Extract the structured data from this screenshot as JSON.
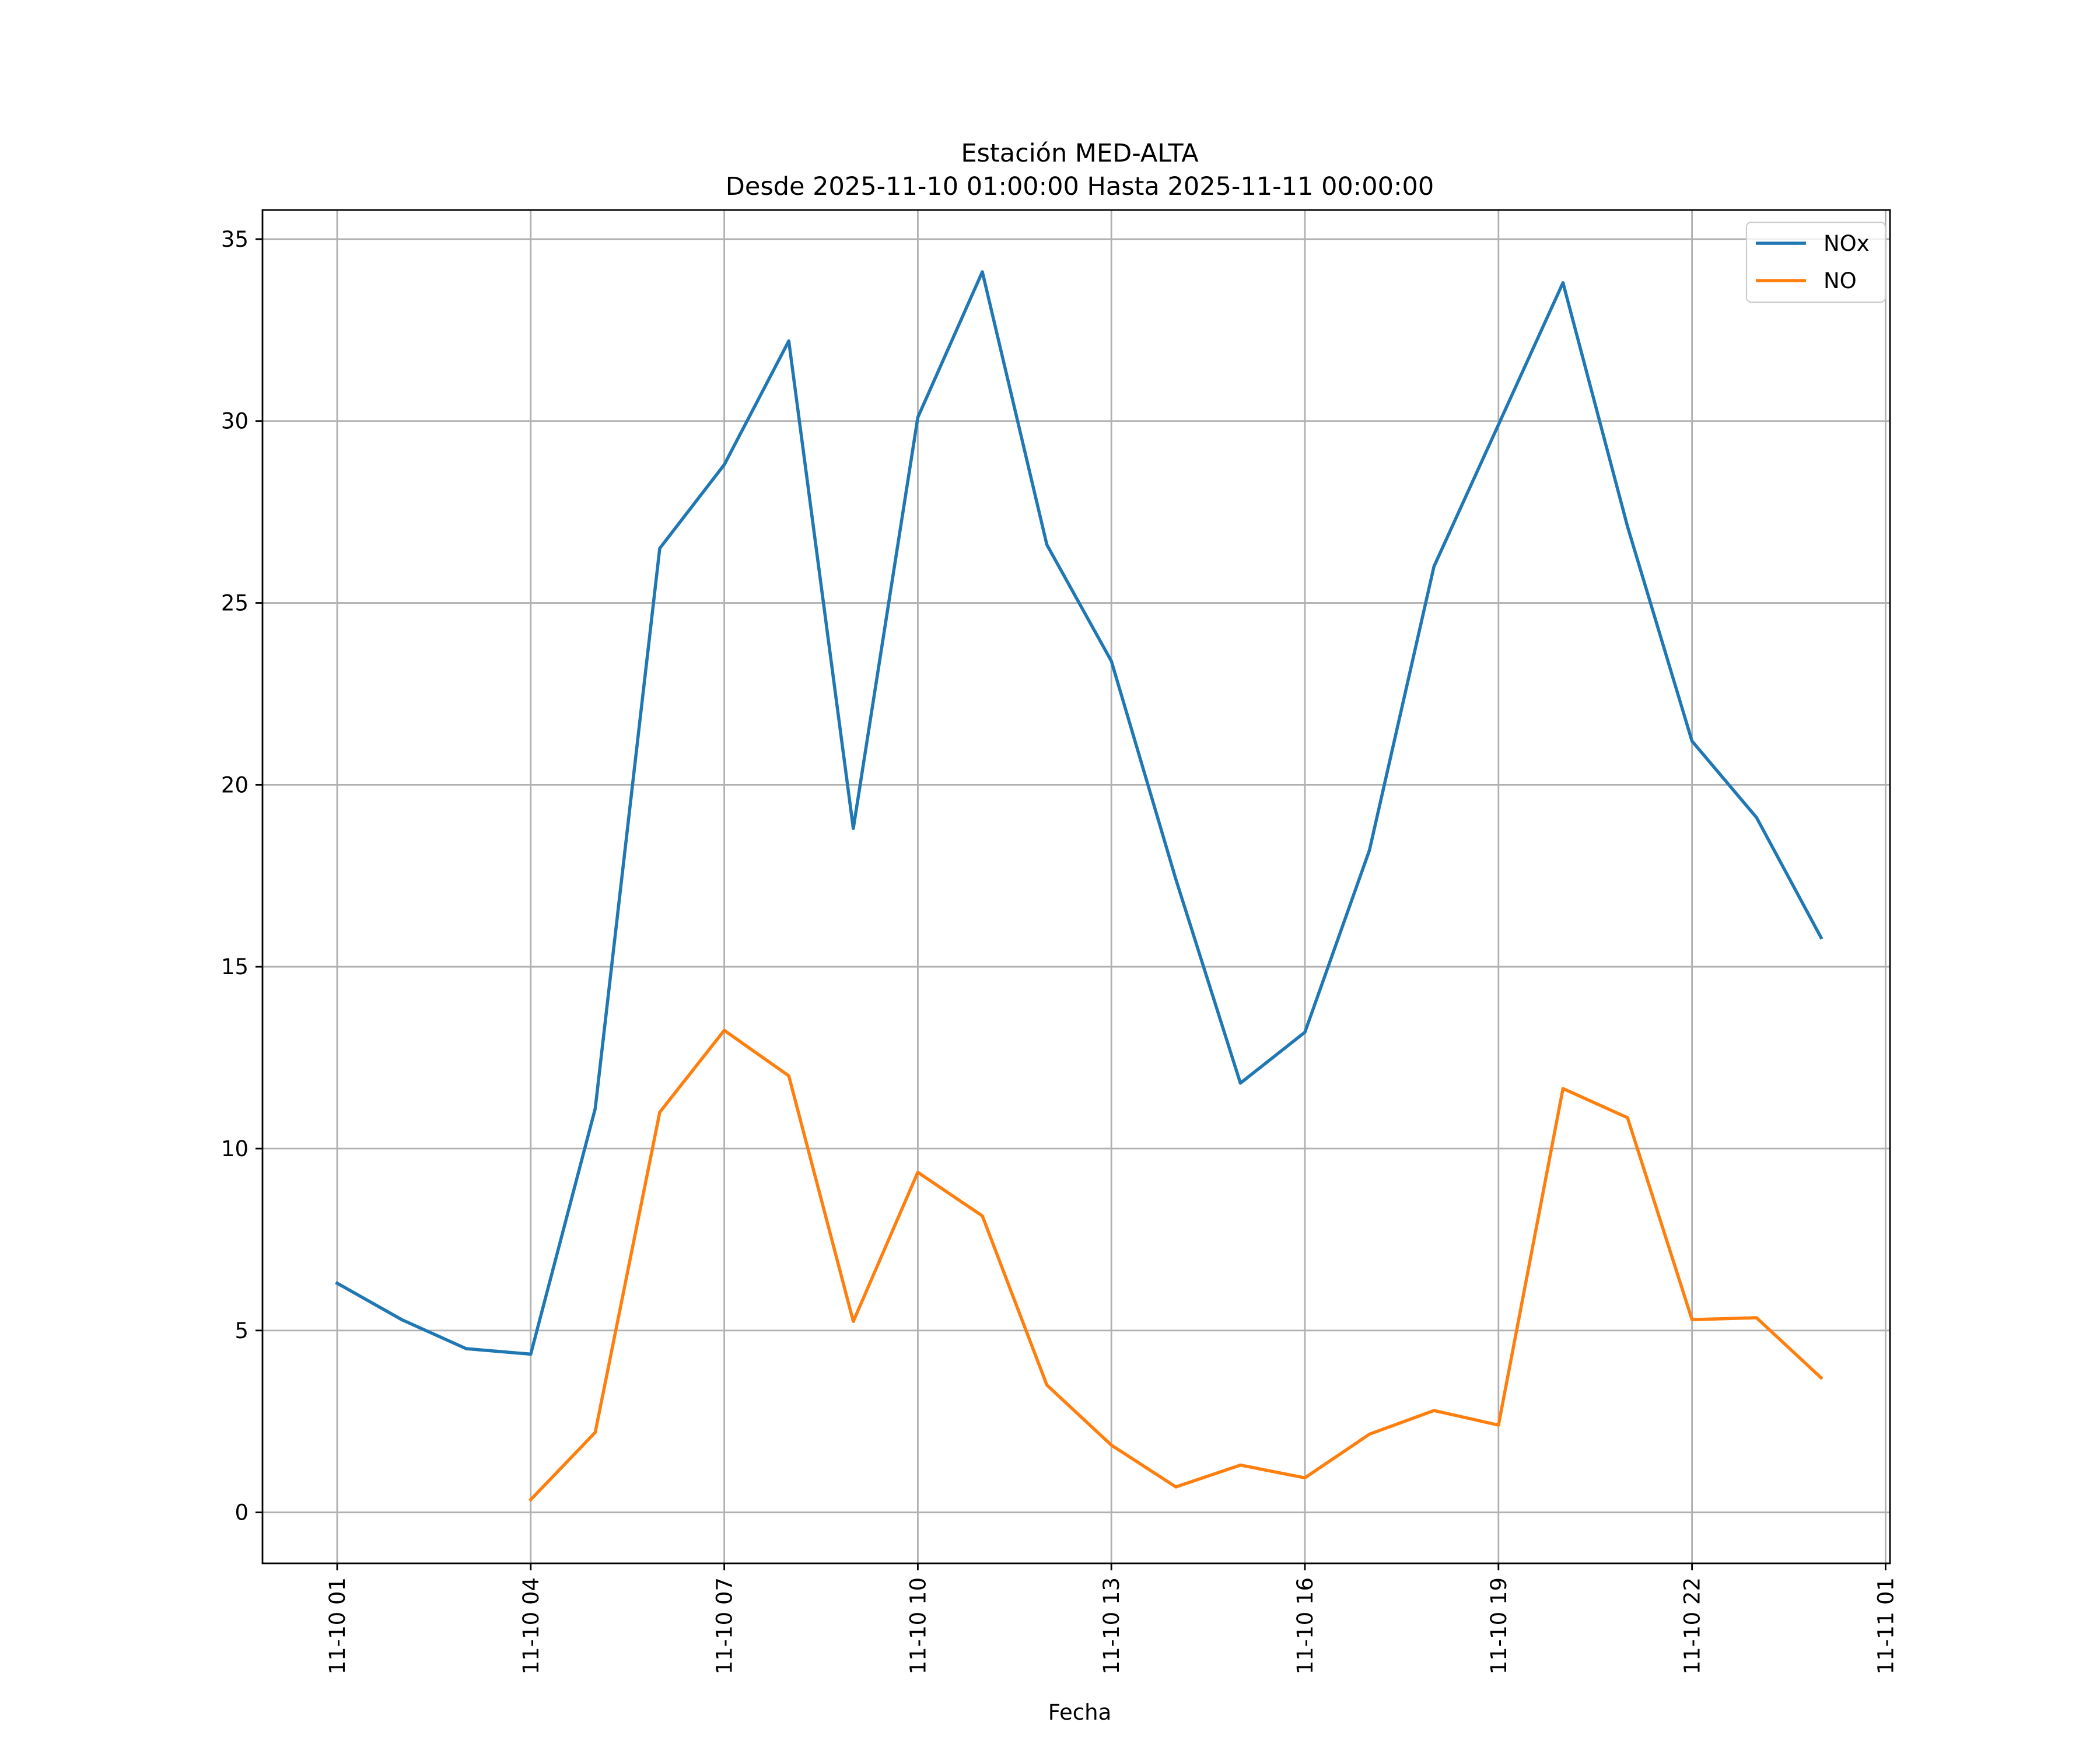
{
  "chart_data": {
    "type": "line",
    "title_line1": "Estación MED-ALTA",
    "title_line2": "Desde 2025-11-10 01:00:00 Hasta 2025-11-11 00:00:00",
    "xlabel": "Fecha",
    "ylabel": "",
    "x": [
      "2025-11-10 01:00",
      "2025-11-10 02:00",
      "2025-11-10 03:00",
      "2025-11-10 04:00",
      "2025-11-10 05:00",
      "2025-11-10 06:00",
      "2025-11-10 07:00",
      "2025-11-10 08:00",
      "2025-11-10 09:00",
      "2025-11-10 10:00",
      "2025-11-10 11:00",
      "2025-11-10 12:00",
      "2025-11-10 13:00",
      "2025-11-10 14:00",
      "2025-11-10 15:00",
      "2025-11-10 16:00",
      "2025-11-10 17:00",
      "2025-11-10 18:00",
      "2025-11-10 19:00",
      "2025-11-10 20:00",
      "2025-11-10 21:00",
      "2025-11-10 22:00",
      "2025-11-10 23:00",
      "2025-11-11 00:00"
    ],
    "xticks": [
      "11-10 01",
      "11-10 04",
      "11-10 07",
      "11-10 10",
      "11-10 13",
      "11-10 16",
      "11-10 19",
      "11-10 22",
      "11-11 01"
    ],
    "yticks": [
      "0",
      "5",
      "10",
      "15",
      "20",
      "25",
      "30",
      "35"
    ],
    "ylim": [
      -1.4,
      35.8
    ],
    "grid": true,
    "legend_position": "top-right",
    "series": [
      {
        "name": "NOx",
        "color": "#1f77b4",
        "values": [
          6.3,
          5.3,
          4.5,
          4.35,
          11.1,
          26.5,
          28.8,
          32.2,
          18.8,
          30.1,
          34.1,
          26.6,
          23.4,
          17.4,
          11.8,
          13.2,
          18.2,
          26.0,
          29.9,
          33.8,
          27.1,
          21.2,
          19.1,
          15.8
        ]
      },
      {
        "name": "NO",
        "color": "#ff7f0e",
        "values": [
          null,
          null,
          null,
          0.35,
          2.2,
          11.0,
          13.25,
          12.0,
          5.25,
          9.35,
          8.15,
          3.5,
          1.85,
          0.7,
          1.3,
          0.95,
          2.15,
          2.8,
          2.4,
          11.65,
          10.85,
          5.3,
          5.35,
          3.7
        ]
      }
    ]
  }
}
